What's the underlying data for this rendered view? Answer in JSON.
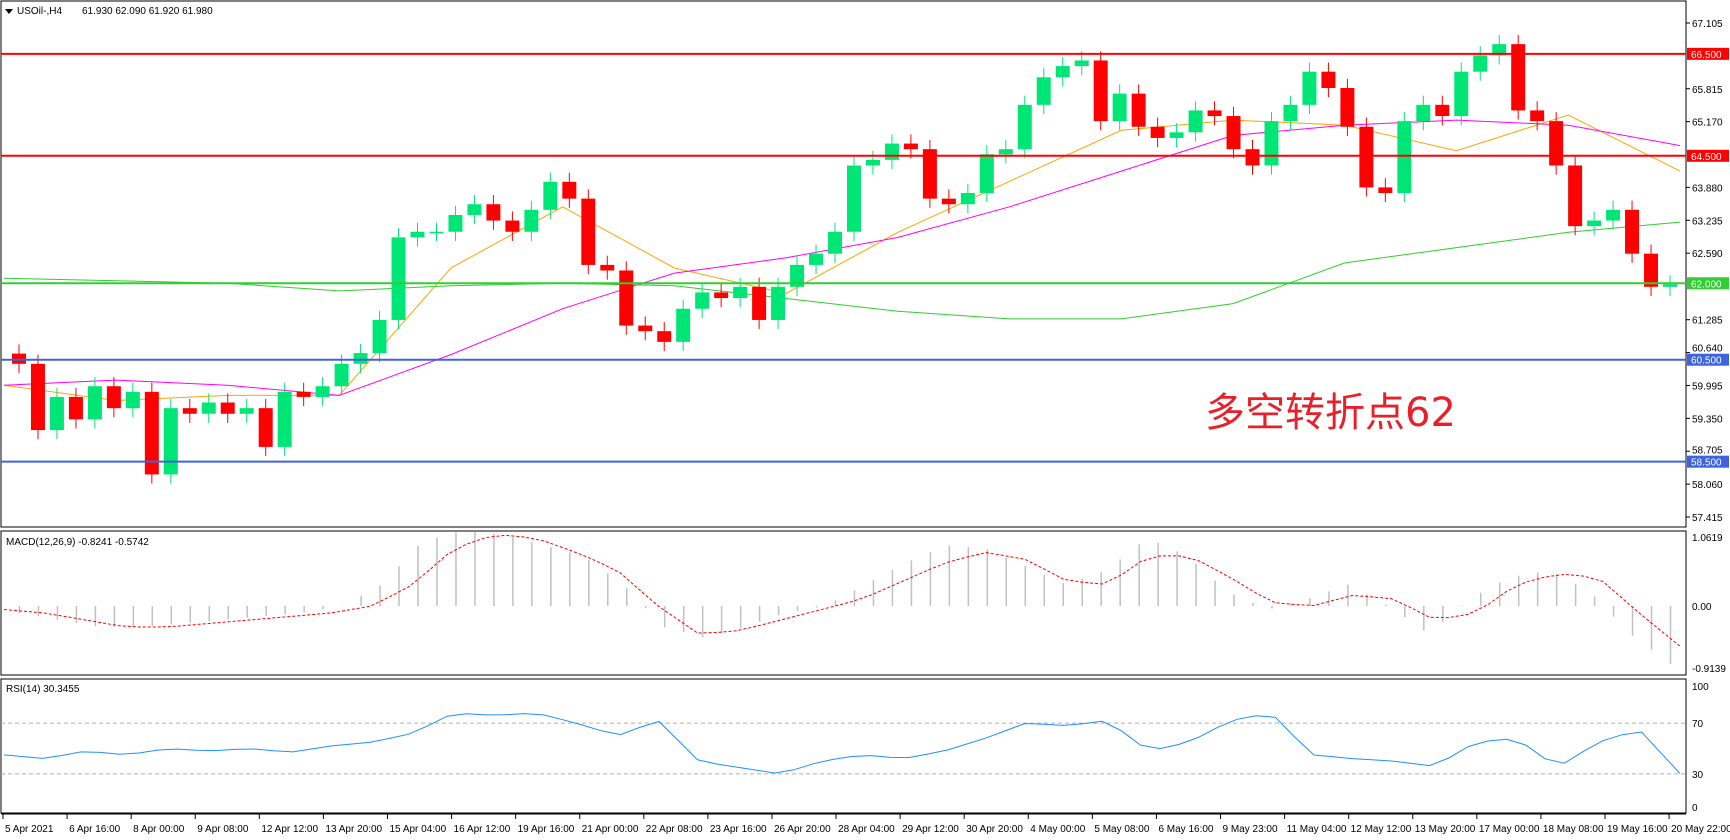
{
  "header": {
    "symbol": "USOil-,H4",
    "ohlc": "61.930 62.090 61.920 61.980"
  },
  "annotation": "多空转折点62",
  "colors": {
    "bull": "#00e676",
    "bear": "#ff0000",
    "ma_fast": "#ffa500",
    "ma_mid": "#ff00ff",
    "ma_slow": "#32cd32",
    "resistance": "#ff0000",
    "pivot": "#32cd32",
    "support": "#3c64dc",
    "macd_hist": "#c0c0c0",
    "macd_signal": "#ff0000",
    "rsi": "#1e90ff"
  },
  "chart_data": [
    {
      "type": "candlestick",
      "title": "USOil-,H4",
      "ylim": [
        57.415,
        67.105
      ],
      "price_ticks": [
        "67.105",
        "65.815",
        "65.170",
        "63.880",
        "63.235",
        "62.590",
        "61.285",
        "60.640",
        "59.995",
        "59.350",
        "58.705",
        "58.060",
        "57.415"
      ],
      "x_ticks": [
        "5 Apr 2021",
        "6 Apr 16:00",
        "8 Apr 00:00",
        "9 Apr 08:00",
        "12 Apr 12:00",
        "13 Apr 20:00",
        "15 Apr 04:00",
        "16 Apr 12:00",
        "19 Apr 16:00",
        "21 Apr 00:00",
        "22 Apr 08:00",
        "23 Apr 16:00",
        "26 Apr 20:00",
        "28 Apr 04:00",
        "29 Apr 12:00",
        "30 Apr 20:00",
        "4 May 00:00",
        "5 May 08:00",
        "6 May 16:00",
        "9 May 23:00",
        "11 May 04:00",
        "12 May 12:00",
        "13 May 20:00",
        "17 May 00:00",
        "18 May 08:00",
        "19 May 16:00",
        "20 May 22:00"
      ],
      "closes": [
        60.42,
        59.12,
        59.77,
        59.33,
        59.98,
        59.55,
        59.87,
        58.25,
        59.55,
        59.44,
        59.66,
        59.44,
        59.55,
        58.79,
        59.87,
        59.77,
        59.98,
        60.42,
        60.63,
        61.28,
        62.9,
        63.01,
        63.01,
        63.34,
        63.55,
        63.23,
        63.01,
        63.44,
        63.99,
        63.66,
        62.36,
        62.25,
        61.17,
        61.06,
        60.85,
        61.5,
        61.82,
        61.71,
        61.93,
        61.28,
        61.93,
        62.36,
        62.58,
        63.01,
        64.31,
        64.42,
        64.74,
        64.63,
        63.66,
        63.55,
        63.77,
        64.53,
        64.63,
        65.5,
        66.04,
        66.26,
        66.37,
        65.18,
        65.72,
        65.07,
        64.85,
        64.96,
        65.39,
        65.28,
        64.63,
        64.31,
        65.18,
        65.5,
        66.15,
        65.83,
        65.07,
        63.88,
        63.77,
        65.18,
        65.5,
        65.28,
        66.15,
        66.47,
        66.69,
        65.39,
        65.18,
        64.31,
        63.12,
        63.23,
        63.44,
        62.58,
        61.93,
        61.98
      ],
      "moving_averages": [
        {
          "color_key": "ma_fast",
          "values": [
            60.0,
            59.7,
            59.8,
            59.8,
            62.3,
            63.5,
            62.3,
            61.8,
            63.0,
            64.0,
            65.0,
            65.2,
            65.1,
            64.6,
            65.3,
            64.2
          ]
        },
        {
          "color_key": "ma_mid",
          "values": [
            60.0,
            60.1,
            60.0,
            59.8,
            60.6,
            61.5,
            62.2,
            62.5,
            62.9,
            63.5,
            64.2,
            64.9,
            65.1,
            65.2,
            65.1,
            64.7
          ]
        },
        {
          "color_key": "ma_slow",
          "values": [
            62.1,
            62.05,
            62.0,
            61.85,
            61.95,
            62.0,
            61.95,
            61.7,
            61.45,
            61.3,
            61.3,
            61.6,
            62.4,
            62.7,
            63.0,
            63.2
          ]
        }
      ],
      "levels": [
        {
          "price": 66.5,
          "label": "66.500",
          "color_key": "resistance"
        },
        {
          "price": 64.5,
          "label": "64.500",
          "color_key": "resistance"
        },
        {
          "price": 62.0,
          "label": "62.000",
          "color_key": "pivot"
        },
        {
          "price": 60.5,
          "label": "60.500",
          "color_key": "support"
        },
        {
          "price": 58.5,
          "label": "58.500",
          "color_key": "support"
        }
      ]
    },
    {
      "type": "bar",
      "title": "MACD(12,26,9) -0.8241 -0.5742",
      "ylim": [
        -0.9139,
        1.0619
      ],
      "ticks": [
        "1.0619",
        "0.00",
        "-0.9139"
      ],
      "histogram": [
        -0.1,
        -0.2,
        -0.3,
        -0.3,
        -0.25,
        -0.2,
        -0.15,
        -0.1,
        0.0,
        0.3,
        0.9,
        1.05,
        1.0,
        0.85,
        0.7,
        0.3,
        -0.3,
        -0.45,
        -0.3,
        -0.1,
        0.0,
        0.3,
        0.6,
        0.85,
        0.8,
        0.55,
        0.3,
        0.5,
        0.95,
        0.7,
        0.2,
        -0.05,
        0.1,
        0.3,
        0.0,
        -0.4,
        0.1,
        0.4,
        0.5,
        0.2,
        -0.4,
        -0.8241
      ],
      "signal": [
        -0.05,
        -0.1,
        -0.2,
        -0.3,
        -0.3,
        -0.25,
        -0.2,
        -0.15,
        -0.1,
        0.0,
        0.3,
        0.8,
        1.0,
        0.95,
        0.75,
        0.5,
        0.0,
        -0.4,
        -0.35,
        -0.2,
        -0.05,
        0.1,
        0.35,
        0.6,
        0.75,
        0.65,
        0.35,
        0.3,
        0.7,
        0.7,
        0.4,
        0.05,
        0.0,
        0.15,
        0.1,
        -0.2,
        -0.1,
        0.3,
        0.45,
        0.4,
        -0.1,
        -0.5742
      ]
    },
    {
      "type": "line",
      "title": "RSI(14) 30.3455",
      "ylim": [
        0,
        100
      ],
      "ticks": [
        "100",
        "70",
        "30",
        "0"
      ],
      "levels": [
        70,
        30
      ],
      "values": [
        45,
        42,
        48,
        45,
        50,
        48,
        50,
        47,
        52,
        55,
        62,
        78,
        76,
        78,
        70,
        60,
        72,
        40,
        35,
        30,
        40,
        45,
        42,
        48,
        58,
        70,
        68,
        72,
        48,
        55,
        72,
        78,
        45,
        42,
        40,
        36,
        55,
        58,
        35,
        55,
        65,
        30.3455
      ]
    }
  ]
}
